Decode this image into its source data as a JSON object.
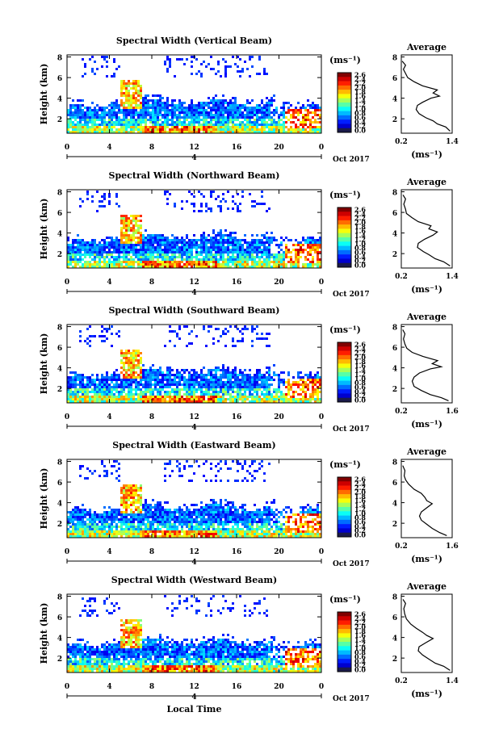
{
  "chart_data": [
    {
      "type": "heatmap",
      "title": "Spectral Width (Vertical Beam)",
      "ylabel": "Height (km)",
      "xticks": [
        "0",
        "4",
        "8",
        "12",
        "16",
        "20",
        "0"
      ],
      "yticks": [
        "2",
        "4",
        "6",
        "8"
      ],
      "date_marker": "4",
      "date_label": "Oct 2017",
      "xlim": [
        0,
        24
      ],
      "ylim": [
        0.6,
        8.2
      ],
      "colorbar": {
        "unit": "(ms⁻¹)",
        "ticks": [
          "2.6",
          "2.4",
          "2.2",
          "2.0",
          "1.8",
          "1.6",
          "1.4",
          "1.2",
          "1.0",
          "0.8",
          "0.6",
          "0.4",
          "0.2",
          "0.0"
        ]
      },
      "profile": {
        "title": "Average",
        "xlabel": "(ms⁻¹)",
        "xticks": [
          "0.2",
          "1.4"
        ],
        "xlim": [
          0.2,
          1.4
        ],
        "yticks": [
          "2",
          "4",
          "6",
          "8"
        ],
        "ylim": [
          0.6,
          8.2
        ],
        "points": [
          [
            1.35,
            0.8
          ],
          [
            1.25,
            1.2
          ],
          [
            1.05,
            1.5
          ],
          [
            0.95,
            1.8
          ],
          [
            0.78,
            2.1
          ],
          [
            0.62,
            2.5
          ],
          [
            0.55,
            2.9
          ],
          [
            0.58,
            3.3
          ],
          [
            0.7,
            3.6
          ],
          [
            0.9,
            4.0
          ],
          [
            1.1,
            4.2
          ],
          [
            0.95,
            4.5
          ],
          [
            1.05,
            4.8
          ],
          [
            0.7,
            5.2
          ],
          [
            0.5,
            5.6
          ],
          [
            0.35,
            6.0
          ],
          [
            0.3,
            6.4
          ],
          [
            0.25,
            6.8
          ],
          [
            0.3,
            7.2
          ],
          [
            0.22,
            7.6
          ]
        ]
      }
    },
    {
      "type": "heatmap",
      "title": "Spectral Width (Northward Beam)",
      "ylabel": "Height (km)",
      "xticks": [
        "0",
        "4",
        "8",
        "12",
        "16",
        "20",
        "0"
      ],
      "yticks": [
        "2",
        "4",
        "6",
        "8"
      ],
      "date_marker": "4",
      "date_label": "Oct 2017",
      "xlim": [
        0,
        24
      ],
      "ylim": [
        0.6,
        8.2
      ],
      "colorbar": {
        "unit": "(ms⁻¹)",
        "ticks": [
          "2.6",
          "2.4",
          "2.2",
          "2.0",
          "1.8",
          "1.6",
          "1.4",
          "1.2",
          "1.0",
          "0.8",
          "0.6",
          "0.4",
          "0.2",
          "0.0"
        ]
      },
      "profile": {
        "title": "Average",
        "xlabel": "(ms⁻¹)",
        "xticks": [
          "0.2",
          "1.4"
        ],
        "xlim": [
          0.2,
          1.4
        ],
        "yticks": [
          "2",
          "4",
          "6",
          "8"
        ],
        "ylim": [
          0.6,
          8.2
        ],
        "points": [
          [
            1.35,
            0.8
          ],
          [
            1.2,
            1.2
          ],
          [
            1.0,
            1.5
          ],
          [
            0.85,
            1.9
          ],
          [
            0.72,
            2.2
          ],
          [
            0.58,
            2.6
          ],
          [
            0.6,
            3.0
          ],
          [
            0.75,
            3.4
          ],
          [
            0.95,
            3.8
          ],
          [
            1.05,
            4.1
          ],
          [
            0.85,
            4.4
          ],
          [
            0.9,
            4.7
          ],
          [
            0.6,
            5.1
          ],
          [
            0.45,
            5.5
          ],
          [
            0.32,
            5.9
          ],
          [
            0.3,
            6.3
          ],
          [
            0.26,
            6.8
          ],
          [
            0.3,
            7.3
          ],
          [
            0.24,
            7.7
          ]
        ]
      }
    },
    {
      "type": "heatmap",
      "title": "Spectral Width (Southward Beam)",
      "ylabel": "Height (km)",
      "xticks": [
        "0",
        "4",
        "8",
        "12",
        "16",
        "20",
        "0"
      ],
      "yticks": [
        "2",
        "4",
        "6",
        "8"
      ],
      "date_marker": "4",
      "date_label": "Oct 2017",
      "xlim": [
        0,
        24
      ],
      "ylim": [
        0.6,
        8.2
      ],
      "colorbar": {
        "unit": "(ms⁻¹)",
        "ticks": [
          "2.6",
          "2.4",
          "2.2",
          "2.0",
          "1.8",
          "1.6",
          "1.4",
          "1.2",
          "1.0",
          "0.8",
          "0.6",
          "0.4",
          "0.2",
          "0.0"
        ]
      },
      "profile": {
        "title": "Average",
        "xlabel": "(ms⁻¹)",
        "xticks": [
          "0.2",
          "1.6"
        ],
        "xlim": [
          0.2,
          1.6
        ],
        "yticks": [
          "2",
          "4",
          "6",
          "8"
        ],
        "ylim": [
          0.6,
          8.2
        ],
        "points": [
          [
            1.5,
            0.8
          ],
          [
            1.3,
            1.1
          ],
          [
            1.0,
            1.4
          ],
          [
            0.75,
            1.8
          ],
          [
            0.55,
            2.2
          ],
          [
            0.5,
            2.7
          ],
          [
            0.55,
            3.1
          ],
          [
            0.7,
            3.5
          ],
          [
            1.0,
            3.9
          ],
          [
            1.3,
            4.1
          ],
          [
            1.05,
            4.4
          ],
          [
            1.2,
            4.7
          ],
          [
            0.8,
            5.1
          ],
          [
            0.5,
            5.5
          ],
          [
            0.35,
            5.9
          ],
          [
            0.3,
            6.3
          ],
          [
            0.26,
            6.8
          ],
          [
            0.3,
            7.3
          ],
          [
            0.24,
            7.7
          ]
        ]
      }
    },
    {
      "type": "heatmap",
      "title": "Spectral Width (Eastward Beam)",
      "ylabel": "Height (km)",
      "xticks": [
        "0",
        "4",
        "8",
        "12",
        "16",
        "20",
        "0"
      ],
      "yticks": [
        "2",
        "4",
        "6",
        "8"
      ],
      "date_marker": "4",
      "date_label": "Oct 2017",
      "xlim": [
        0,
        24
      ],
      "ylim": [
        0.6,
        8.2
      ],
      "colorbar": {
        "unit": "(ms⁻¹)",
        "ticks": [
          "2.6",
          "2.4",
          "2.2",
          "2.0",
          "1.8",
          "1.6",
          "1.4",
          "1.2",
          "1.0",
          "0.8",
          "0.6",
          "0.4",
          "0.2",
          "0.0"
        ]
      },
      "profile": {
        "title": "Average",
        "xlabel": "(ms⁻¹)",
        "xticks": [
          "0.2",
          "1.6"
        ],
        "xlim": [
          0.2,
          1.6
        ],
        "yticks": [
          "2",
          "4",
          "6",
          "8"
        ],
        "ylim": [
          0.6,
          8.2
        ],
        "points": [
          [
            1.45,
            0.8
          ],
          [
            1.25,
            1.1
          ],
          [
            1.05,
            1.5
          ],
          [
            0.9,
            1.9
          ],
          [
            0.75,
            2.3
          ],
          [
            0.7,
            2.7
          ],
          [
            0.75,
            3.1
          ],
          [
            0.9,
            3.5
          ],
          [
            1.05,
            3.9
          ],
          [
            0.9,
            4.2
          ],
          [
            0.85,
            4.5
          ],
          [
            0.75,
            4.9
          ],
          [
            0.55,
            5.3
          ],
          [
            0.4,
            5.8
          ],
          [
            0.32,
            6.2
          ],
          [
            0.28,
            6.6
          ],
          [
            0.3,
            7.1
          ],
          [
            0.24,
            7.6
          ]
        ]
      }
    },
    {
      "type": "heatmap",
      "title": "Spectral Width (Westward Beam)",
      "ylabel": "Height (km)",
      "xlabel": "Local Time",
      "xticks": [
        "0",
        "4",
        "8",
        "12",
        "16",
        "20",
        "0"
      ],
      "yticks": [
        "2",
        "4",
        "6",
        "8"
      ],
      "date_marker": "4",
      "date_label": "Oct 2017",
      "xlim": [
        0,
        24
      ],
      "ylim": [
        0.6,
        8.2
      ],
      "colorbar": {
        "unit": "(ms⁻¹)",
        "ticks": [
          "2.6",
          "2.4",
          "2.2",
          "2.0",
          "1.8",
          "1.6",
          "1.4",
          "1.2",
          "1.0",
          "0.8",
          "0.6",
          "0.4",
          "0.2",
          "0.0"
        ]
      },
      "profile": {
        "title": "Average",
        "xlabel": "(ms⁻¹)",
        "xticks": [
          "0.2",
          "1.4"
        ],
        "xlim": [
          0.2,
          1.4
        ],
        "yticks": [
          "2",
          "4",
          "6",
          "8"
        ],
        "ylim": [
          0.6,
          8.2
        ],
        "points": [
          [
            1.35,
            0.8
          ],
          [
            1.2,
            1.2
          ],
          [
            1.0,
            1.5
          ],
          [
            0.85,
            1.9
          ],
          [
            0.7,
            2.3
          ],
          [
            0.6,
            2.7
          ],
          [
            0.62,
            3.1
          ],
          [
            0.78,
            3.5
          ],
          [
            0.95,
            3.9
          ],
          [
            0.8,
            4.2
          ],
          [
            0.7,
            4.5
          ],
          [
            0.55,
            4.9
          ],
          [
            0.42,
            5.3
          ],
          [
            0.32,
            5.8
          ],
          [
            0.28,
            6.3
          ],
          [
            0.26,
            6.8
          ],
          [
            0.3,
            7.3
          ],
          [
            0.24,
            7.7
          ]
        ]
      }
    }
  ]
}
